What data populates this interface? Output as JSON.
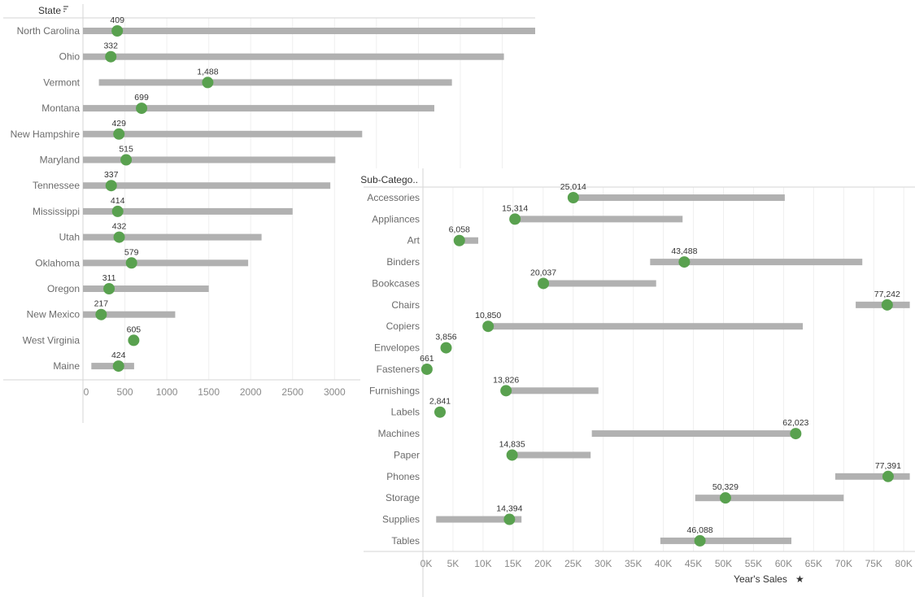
{
  "colors": {
    "bar": "#b1b1b1",
    "dot": "#59a14f",
    "grid": "#efefef",
    "axis": "#d6d6d6"
  },
  "chart_data": [
    {
      "type": "dumbbell",
      "header": "State",
      "header_icon": "sort-descending-icon",
      "xlim": [
        0,
        5400
      ],
      "ticks": [
        "0",
        "500",
        "1000",
        "1500",
        "2000",
        "2500",
        "3000"
      ],
      "tick_values": [
        0,
        500,
        1000,
        1500,
        2000,
        2500,
        3000
      ],
      "grid": true,
      "categories": [
        "North Carolina",
        "Ohio",
        "Vermont",
        "Montana",
        "New Hampshire",
        "Maryland",
        "Tennessee",
        "Mississippi",
        "Utah",
        "Oklahoma",
        "Oregon",
        "New Mexico",
        "West Virginia",
        "Maine"
      ],
      "range_start": [
        0,
        0,
        190,
        0,
        0,
        0,
        0,
        0,
        0,
        0,
        0,
        0,
        null,
        100
      ],
      "range_end": [
        5400,
        5020,
        4400,
        4190,
        3330,
        3010,
        2950,
        2500,
        2130,
        1970,
        1500,
        1100,
        null,
        610
      ],
      "values": [
        409,
        332,
        1488,
        699,
        429,
        515,
        337,
        414,
        432,
        579,
        311,
        217,
        605,
        424
      ],
      "value_labels": [
        "409",
        "332",
        "1,488",
        "699",
        "429",
        "515",
        "337",
        "414",
        "432",
        "579",
        "311",
        "217",
        "605",
        "424"
      ]
    },
    {
      "type": "dumbbell",
      "header": "Sub-Catego..",
      "xlabel": "Year's Sales",
      "xlabel_icon": "pin-icon",
      "xlim": [
        0,
        81000
      ],
      "ticks": [
        "0K",
        "5K",
        "10K",
        "15K",
        "20K",
        "25K",
        "30K",
        "35K",
        "40K",
        "45K",
        "50K",
        "55K",
        "60K",
        "65K",
        "70K",
        "75K",
        "80K"
      ],
      "tick_values": [
        0,
        5000,
        10000,
        15000,
        20000,
        25000,
        30000,
        35000,
        40000,
        45000,
        50000,
        55000,
        60000,
        65000,
        70000,
        75000,
        80000
      ],
      "grid": true,
      "categories": [
        "Accessories",
        "Appliances",
        "Art",
        "Binders",
        "Bookcases",
        "Chairs",
        "Copiers",
        "Envelopes",
        "Fasteners",
        "Furnishings",
        "Labels",
        "Machines",
        "Paper",
        "Phones",
        "Storage",
        "Supplies",
        "Tables"
      ],
      "range_start": [
        25014,
        15314,
        6058,
        37800,
        20037,
        72000,
        10850,
        null,
        null,
        13826,
        null,
        28100,
        14835,
        68600,
        45300,
        2200,
        39500
      ],
      "range_end": [
        60200,
        43200,
        9200,
        73100,
        38800,
        81000,
        63200,
        null,
        null,
        29200,
        null,
        62400,
        27900,
        81000,
        70000,
        16400,
        61300
      ],
      "values": [
        25014,
        15314,
        6058,
        43488,
        20037,
        77242,
        10850,
        3856,
        661,
        13826,
        2841,
        62023,
        14835,
        77391,
        50329,
        14394,
        46088
      ],
      "value_labels": [
        "25,014",
        "15,314",
        "6,058",
        "43,488",
        "20,037",
        "77,242",
        "10,850",
        "3,856",
        "661",
        "13,826",
        "2,841",
        "62,023",
        "14,835",
        "77,391",
        "50,329",
        "14,394",
        "46,088"
      ]
    }
  ]
}
